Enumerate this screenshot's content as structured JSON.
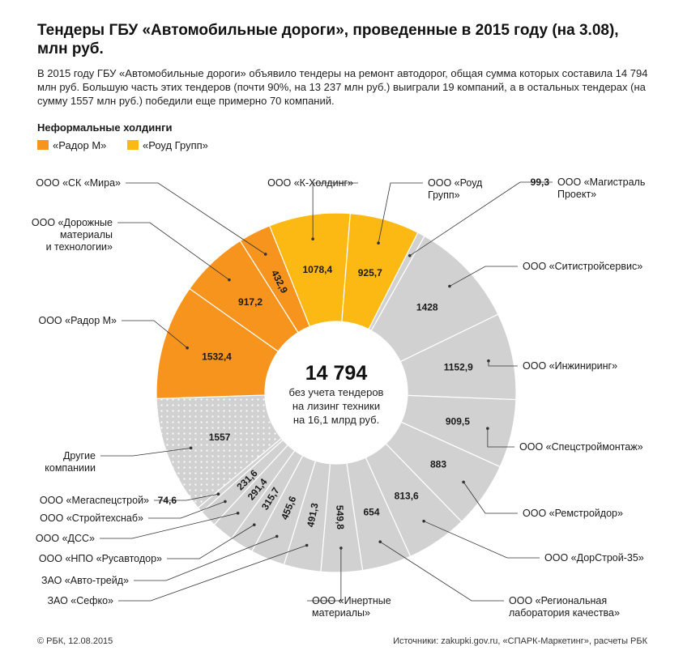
{
  "title": "Тендеры ГБУ «Автомобильные дороги», проведенные в 2015 году (на 3.08), млн руб.",
  "intro": "В 2015 году ГБУ «Автомобильные дороги» объявило тендеры на ремонт автодорог, общая сумма которых составила 14 794 млн руб. Большую часть этих тендеров (почти 90%, на 13 237 млн руб.) выиграли 19 компаний, а в остальных тендерах (на сумму 1557 млн руб.) победили еще примерно 70 компаний.",
  "legend": {
    "title": "Неформальные холдинги",
    "items": [
      {
        "label": "«Радор М»",
        "color": "#f7941d"
      },
      {
        "label": "«Роуд Групп»",
        "color": "#fdb913"
      }
    ]
  },
  "center": {
    "total": "14 794",
    "line1": "без учета тендеров",
    "line2": "на лизинг техники",
    "line3": "на 16,1 млрд руб."
  },
  "chart_data": {
    "type": "pie",
    "variant": "donut",
    "title": "Тендеры ГБУ «Автомобильные дороги», проведенные в 2015 году (на 3.08), млн руб.",
    "total": 14794,
    "slices": [
      {
        "label": "ООО «Магистраль Проект»",
        "lines": [
          "ООО «Магистраль",
          "Проект»"
        ],
        "value": 99.3,
        "value_text": "99,3",
        "group": "other"
      },
      {
        "label": "ООО «Ситистройсервис»",
        "lines": [
          "ООО «Ситистройсервис»"
        ],
        "value": 1428,
        "value_text": "1428",
        "group": "other"
      },
      {
        "label": "ООО «Инжиниринг»",
        "lines": [
          "ООО «Инжиниринг»"
        ],
        "value": 1152.9,
        "value_text": "1152,9",
        "group": "other"
      },
      {
        "label": "ООО «Спецстроймонтаж»",
        "lines": [
          "ООО «Спецстроймонтаж»"
        ],
        "value": 909.5,
        "value_text": "909,5",
        "group": "other"
      },
      {
        "label": "ООО «Ремстройдор»",
        "lines": [
          "ООО «Ремстройдор»"
        ],
        "value": 883,
        "value_text": "883",
        "group": "other"
      },
      {
        "label": "ООО «ДорСтрой-35»",
        "lines": [
          "ООО «ДорСтрой-35»"
        ],
        "value": 813.6,
        "value_text": "813,6",
        "group": "other"
      },
      {
        "label": "ООО «Региональная лаборатория качества»",
        "lines": [
          "ООО «Региональная",
          "лаборатория качества»"
        ],
        "value": 654,
        "value_text": "654",
        "group": "other"
      },
      {
        "label": "ООО «Инертные материалы»",
        "lines": [
          "ООО «Инертные",
          "материалы»"
        ],
        "value": 549.8,
        "value_text": "549,8",
        "group": "other"
      },
      {
        "label": "ЗАО «Сефко»",
        "lines": [
          "ЗАО «Сефко»"
        ],
        "value": 491.3,
        "value_text": "491,3",
        "group": "other"
      },
      {
        "label": "ЗАО «Авто-трейд»",
        "lines": [
          "ЗАО «Авто-трейд»"
        ],
        "value": 455.6,
        "value_text": "455,6",
        "group": "other"
      },
      {
        "label": "ООО «НПО «Русавтодор»",
        "lines": [
          "ООО «НПО «Русавтодор»"
        ],
        "value": 315.7,
        "value_text": "315,7",
        "group": "other"
      },
      {
        "label": "ООО «ДСС»",
        "lines": [
          "ООО «ДСС»"
        ],
        "value": 291.4,
        "value_text": "291,4",
        "group": "other"
      },
      {
        "label": "ООО «Стройтехснаб»",
        "lines": [
          "ООО «Стройтехснаб»"
        ],
        "value": 231.6,
        "value_text": "231,6",
        "group": "other"
      },
      {
        "label": "ООО «Мегаспецстрой»",
        "lines": [
          "ООО «Мегаспецстрой»"
        ],
        "value": 74.6,
        "value_text": "74,6",
        "group": "other"
      },
      {
        "label": "Другие компаниии",
        "lines": [
          "Другие",
          "компаниии"
        ],
        "value": 1557,
        "value_text": "1557",
        "group": "rest"
      },
      {
        "label": "ООО «Радор М»",
        "lines": [
          "ООО «Радор М»"
        ],
        "value": 1532.4,
        "value_text": "1532,4",
        "group": "rador"
      },
      {
        "label": "ООО «Дорожные материалы и технологии»",
        "lines": [
          "ООО «Дорожные",
          "материалы",
          "и технологии»"
        ],
        "value": 917.2,
        "value_text": "917,2",
        "group": "rador"
      },
      {
        "label": "ООО «СК «Мира»",
        "lines": [
          "ООО «СК «Мира»"
        ],
        "value": 432.9,
        "value_text": "432,9",
        "group": "rador"
      },
      {
        "label": "ООО «К-Холдинг»",
        "lines": [
          "ООО «К-Холдинг»"
        ],
        "value": 1078.4,
        "value_text": "1078,4",
        "group": "road"
      },
      {
        "label": "ООО «Роуд Групп»",
        "lines": [
          "ООО «Роуд",
          "Групп»"
        ],
        "value": 925.7,
        "value_text": "925,7",
        "group": "road"
      }
    ],
    "colors": {
      "rador": "#f7941d",
      "road": "#fdb913",
      "other": "#d1d1d1",
      "rest": "#d1d1d1",
      "separator": "#ffffff",
      "text": "#1a1a1a"
    }
  },
  "footer": {
    "left": "© РБК, 12.08.2015",
    "right": "Источники: zakupki.gov.ru, «СПАРК-Маркетинг», расчеты РБК"
  }
}
